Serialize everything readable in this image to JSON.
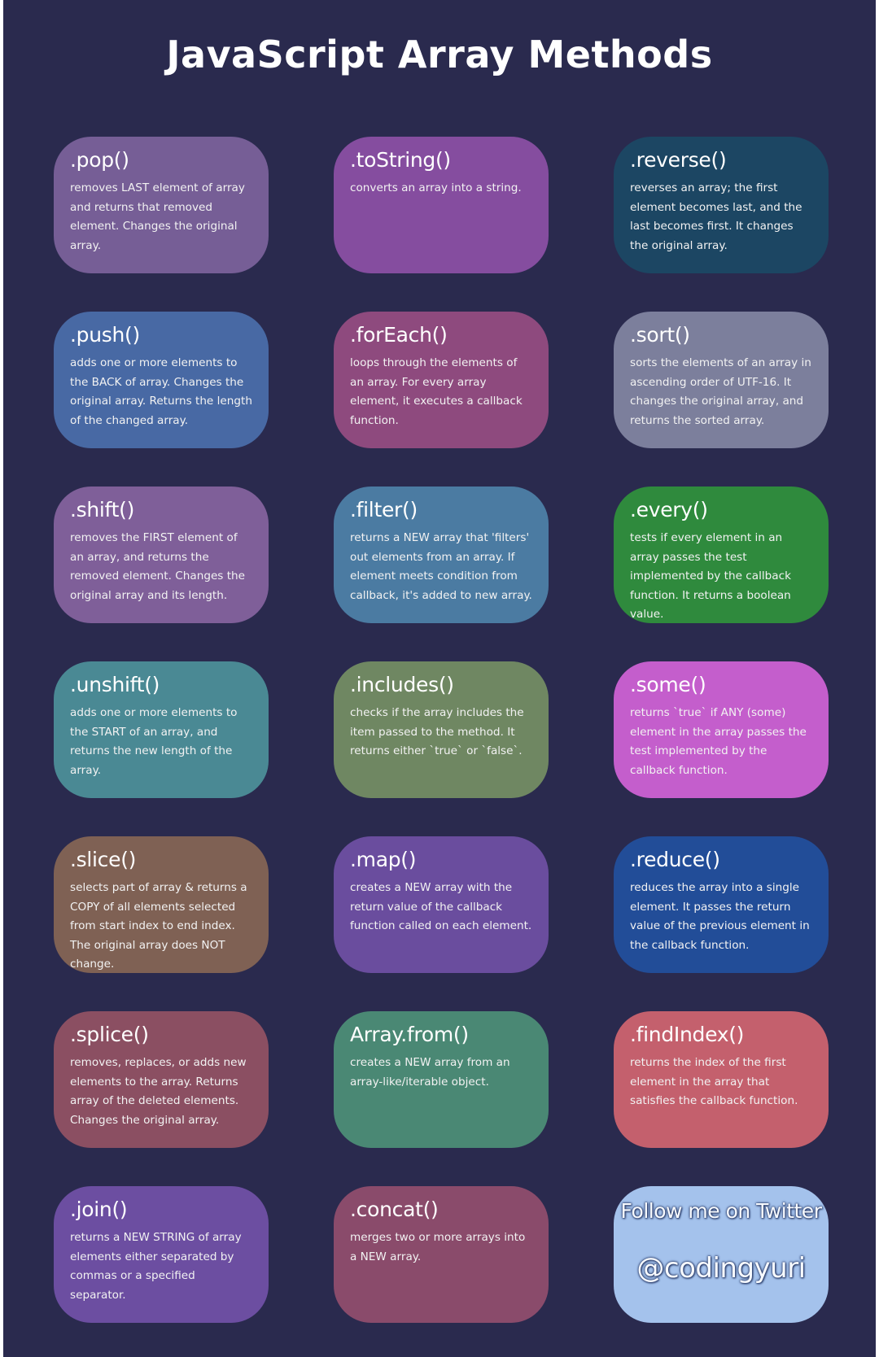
{
  "title": "JavaScript Array Methods",
  "cards": [
    {
      "name": ".pop()",
      "desc": "removes LAST element of array and returns that removed element. Changes the original array.",
      "color": "#765e96"
    },
    {
      "name": ".toString()",
      "desc": "converts an array into a string.",
      "color": "#854d9f"
    },
    {
      "name": ".reverse()",
      "desc": "reverses an array; the first element becomes last, and the last becomes first. It changes the original array.",
      "color": "#1c4663"
    },
    {
      "name": ".push()",
      "desc": "adds one or more elements to the BACK of array. Changes the original array. Returns the length of the changed array.",
      "color": "#4869a4"
    },
    {
      "name": ".forEach()",
      "desc": "loops through the elements of an array. For every array element, it executes a callback function.",
      "color": "#8e4a7e"
    },
    {
      "name": ".sort()",
      "desc": "sorts the elements of an array in ascending order of UTF-16. It changes the original array, and returns the sorted array.",
      "color": "#7c7f9c"
    },
    {
      "name": ".shift()",
      "desc": "removes the FIRST element of an array, and returns the removed element. Changes the original array and its length.",
      "color": "#7f5f99"
    },
    {
      "name": ".filter()",
      "desc": "returns a NEW array that 'filters' out elements from an array. If element meets condition from callback, it's added to new array.",
      "color": "#4b7ba2"
    },
    {
      "name": ".every()",
      "desc": "tests if every element in an array passes the test implemented by the callback function. It returns a boolean value.",
      "color": "#2f8a3d"
    },
    {
      "name": ".unshift()",
      "desc": "adds one or more elements to the START of an array, and returns the new length of the array.",
      "color": "#4a8994"
    },
    {
      "name": ".includes()",
      "desc": "checks if the array includes the item passed to the method. It returns either `true` or `false`.",
      "color": "#6f8762"
    },
    {
      "name": ".some()",
      "desc": "returns `true` if ANY (some) element in the array passes the test implemented by the callback function.",
      "color": "#c45ecc"
    },
    {
      "name": ".slice()",
      "desc": "selects part of array & returns a COPY of all elements selected from start index to end index. The original array does NOT change.",
      "color": "#7f6154"
    },
    {
      "name": ".map()",
      "desc": "creates a NEW array with the return value of the callback function called on each element.",
      "color": "#6a4d9e"
    },
    {
      "name": ".reduce()",
      "desc": "reduces the array into a single element. It passes the return value of the previous element in the callback function.",
      "color": "#224d98"
    },
    {
      "name": ".splice()",
      "desc": "removes, replaces, or adds new elements to the array. Returns array of the deleted elements. Changes the original array.",
      "color": "#8b4f62"
    },
    {
      "name": "Array.from()",
      "desc": "creates a NEW array from an array-like/iterable object.",
      "color": "#4a8874"
    },
    {
      "name": ".findIndex()",
      "desc": "returns the index of the first element in the array that satisfies the callback function.",
      "color": "#c4606d"
    },
    {
      "name": ".join()",
      "desc": "returns a NEW STRING of array elements either separated by commas or a specified separator.",
      "color": "#6c4ea1"
    },
    {
      "name": ".concat()",
      "desc": "merges two or more arrays into a NEW array.",
      "color": "#8a4b6b"
    }
  ],
  "follow": {
    "line": "Follow me on Twitter",
    "handle": "@codingyuri",
    "color": "#a4c2ec"
  },
  "colors": {
    "background": "#2a2a4e",
    "text": "#ffffff"
  }
}
